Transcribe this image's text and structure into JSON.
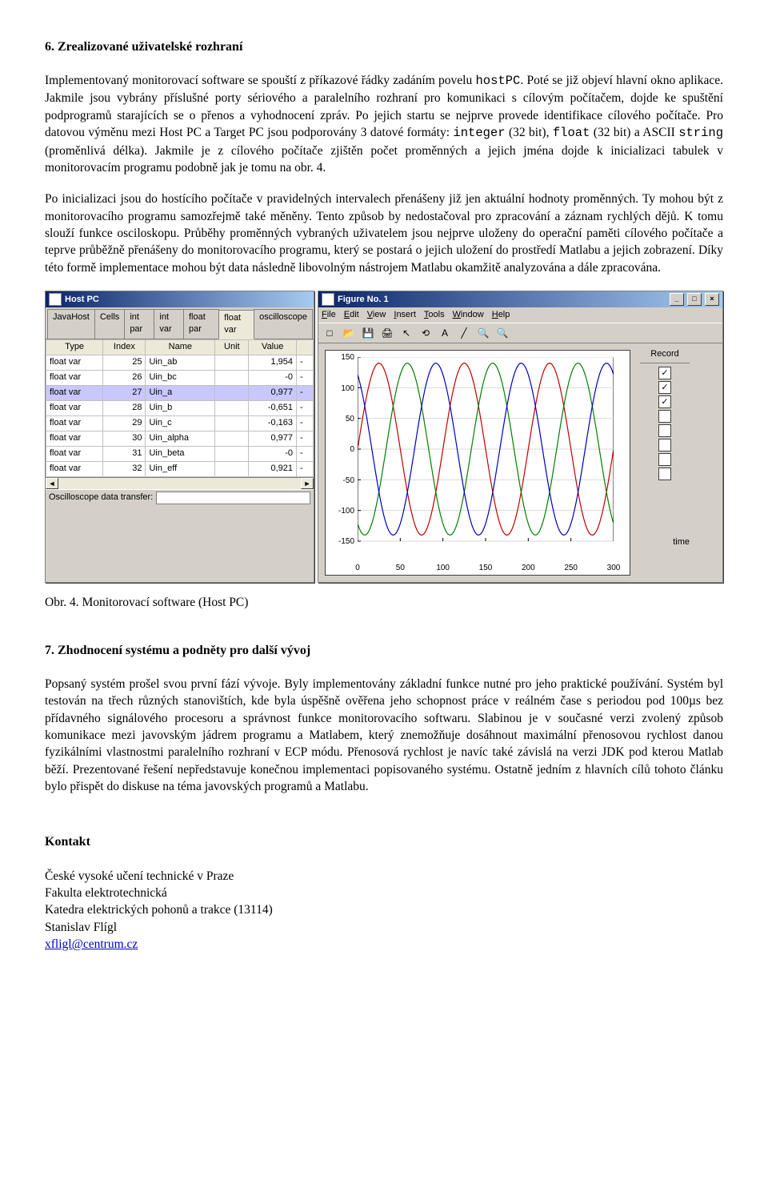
{
  "section6_title": "6. Zrealizované uživatelské rozhraní",
  "para1_a": "Implementovaný monitorovací software se spouští z příkazové řádky zadáním povelu ",
  "para1_mono": "hostPC",
  "para1_b": ". Poté se již objeví hlavní okno aplikace. Jakmile jsou vybrány příslušné porty sériového a paralelního rozhraní pro komunikaci s cílovým počítačem, dojde ke spuštění podprogramů starajících se o přenos a vyhodnocení zpráv. Po jejich startu se nejprve provede identifikace cílového počítače. Pro datovou výměnu mezi Host PC a Target PC jsou podporovány 3 datové formáty: ",
  "para1_m2": "integer",
  "para1_c": " (32 bit), ",
  "para1_m3": "float",
  "para1_d": " (32 bit) a ASCII ",
  "para1_m4": "string",
  "para1_e": " (proměnlivá délka). Jakmile je z cílového počítače zjištěn počet proměnných a jejich jména dojde k inicializaci tabulek v monitorovacím programu podobně jak je tomu na obr. 4.",
  "para2": "Po inicializaci jsou do hostícího počítače v pravidelných intervalech přenášeny již jen aktuální hodnoty proměnných. Ty mohou být z monitorovacího programu samozřejmě také měněny. Tento způsob by nedostačoval pro zpracování a záznam rychlých dějů. K tomu slouží funkce osciloskopu. Průběhy proměnných vybraných uživatelem jsou nejprve uloženy do operační paměti cílového počítače a teprve průběžně přenášeny do monitorovacího programu, který se postará o jejich uložení do prostředí Matlabu a jejich zobrazení. Díky této formě implementace mohou být data následně libovolným nástrojem Matlabu okamžitě analyzována a dále zpracována.",
  "caption": "Obr. 4. Monitorovací software (Host PC)",
  "section7_title": "7. Zhodnocení systému a podněty pro další vývoj",
  "para7": "Popsaný systém prošel svou první fází vývoje. Byly implementovány základní funkce nutné pro jeho praktické používání. Systém byl testován na třech různých stanovištích, kde byla úspěšně ověřena jeho schopnost práce v reálném čase s periodou pod 100µs bez přídavného signálového procesoru a správnost funkce monitorovacího softwaru. Slabinou je v současné verzi zvolený způsob komunikace mezi javovským jádrem programu a Matlabem, který znemožňuje dosáhnout maximální přenosovou rychlost danou fyzikálními vlastnostmi paralelního rozhraní v ECP módu. Přenosová rychlost je navíc také závislá na verzi JDK pod kterou Matlab běží. Prezentované řešení nepředstavuje konečnou implementaci popisovaného systému. Ostatně jedním z hlavních cílů tohoto článku bylo přispět do diskuse na téma javovských programů a Matlabu.",
  "kontakt_title": "Kontakt",
  "kontakt_l1": "České vysoké učení technické v Praze",
  "kontakt_l2": "Fakulta elektrotechnická",
  "kontakt_l3": "Katedra elektrických pohonů a trakce (13114)",
  "kontakt_l4": "Stanislav Flígl",
  "kontakt_link": "xfligl@centrum.cz",
  "left_window": {
    "title": "Host PC",
    "tabs": [
      "JavaHost",
      "Cells",
      "int par",
      "int var",
      "float par",
      "float var",
      "oscilloscope"
    ],
    "active_tab_idx": 5,
    "columns": [
      "Type",
      "Index",
      "Name",
      "Unit",
      "Value"
    ],
    "rows": [
      {
        "type": "float var",
        "index": "25",
        "name": "Uin_ab",
        "unit": "",
        "value": "1,954",
        "dash": "-",
        "sel": false
      },
      {
        "type": "float var",
        "index": "26",
        "name": "Uin_bc",
        "unit": "",
        "value": "-0",
        "dash": "-",
        "sel": false
      },
      {
        "type": "float var",
        "index": "27",
        "name": "Uin_a",
        "unit": "",
        "value": "0,977",
        "dash": "-",
        "sel": true
      },
      {
        "type": "float var",
        "index": "28",
        "name": "Uin_b",
        "unit": "",
        "value": "-0,651",
        "dash": "-",
        "sel": false
      },
      {
        "type": "float var",
        "index": "29",
        "name": "Uin_c",
        "unit": "",
        "value": "-0,163",
        "dash": "-",
        "sel": false
      },
      {
        "type": "float var",
        "index": "30",
        "name": "Uin_alpha",
        "unit": "",
        "value": "0,977",
        "dash": "-",
        "sel": false
      },
      {
        "type": "float var",
        "index": "31",
        "name": "Uin_beta",
        "unit": "",
        "value": "-0",
        "dash": "-",
        "sel": false
      },
      {
        "type": "float var",
        "index": "32",
        "name": "Uin_eff",
        "unit": "",
        "value": "0,921",
        "dash": "-",
        "sel": false
      }
    ],
    "status_label": "Oscilloscope data transfer:"
  },
  "right_window": {
    "title": "Figure No. 1",
    "menus": [
      "File",
      "Edit",
      "View",
      "Insert",
      "Tools",
      "Window",
      "Help"
    ],
    "toolbar_icons": [
      "new-icon",
      "open-icon",
      "save-icon",
      "print-icon",
      "arrow-icon",
      "rotate-icon",
      "text-icon",
      "line-icon",
      "zoomin-icon",
      "zoomout-icon"
    ],
    "side_header": "Record",
    "checks": [
      true,
      true,
      true,
      false,
      false,
      false,
      false,
      false
    ],
    "time_label": "time"
  },
  "plot": {
    "ylim": [
      -150,
      150
    ],
    "yticks": [
      -150,
      -100,
      -50,
      0,
      50,
      100,
      150
    ],
    "xlim": [
      0,
      300
    ],
    "xticks": [
      0,
      50,
      100,
      150,
      200,
      250,
      300
    ],
    "grid_color": "#d9d9d9",
    "background": "#ffffff",
    "amplitude": 140,
    "period": 100,
    "series": [
      {
        "color": "#c00000",
        "phase": 0
      },
      {
        "color": "#008000",
        "phase": 33.3
      },
      {
        "color": "#0000c0",
        "phase": 66.7
      }
    ]
  }
}
